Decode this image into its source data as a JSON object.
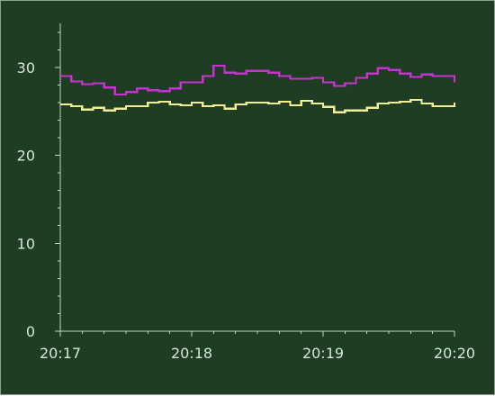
{
  "chart_data": {
    "type": "line",
    "title": "",
    "xlabel": "",
    "ylabel": "",
    "x_tick_labels": [
      "20:17",
      "20:18",
      "20:19",
      "20:20"
    ],
    "y_ticks": [
      0,
      10,
      20,
      30
    ],
    "y_tick_labels": [
      "0",
      "10",
      "20",
      "30"
    ],
    "xlim": [
      "20:17",
      "20:20"
    ],
    "ylim": [
      0,
      35
    ],
    "grid": false,
    "legend": "none",
    "colors": {
      "background": "#1f3d22",
      "axis": "#c7d2c7",
      "text": "#d8e6d8"
    },
    "series": [
      {
        "color": "#c832d2",
        "x": [
          "20:17:00",
          "20:17:05",
          "20:17:10",
          "20:17:15",
          "20:17:20",
          "20:17:25",
          "20:17:30",
          "20:17:35",
          "20:17:40",
          "20:17:45",
          "20:17:50",
          "20:17:55",
          "20:18:00",
          "20:18:05",
          "20:18:10",
          "20:18:15",
          "20:18:20",
          "20:18:25",
          "20:18:30",
          "20:18:35",
          "20:18:40",
          "20:18:45",
          "20:18:50",
          "20:18:55",
          "20:19:00",
          "20:19:05",
          "20:19:10",
          "20:19:15",
          "20:19:20",
          "20:19:25",
          "20:19:30",
          "20:19:35",
          "20:19:40",
          "20:19:45",
          "20:19:50",
          "20:19:55",
          "20:20:00"
        ],
        "values": [
          29.0,
          28.4,
          28.1,
          28.2,
          27.7,
          26.9,
          27.2,
          27.6,
          27.4,
          27.3,
          27.6,
          28.3,
          28.3,
          29.0,
          30.2,
          29.4,
          29.3,
          29.6,
          29.6,
          29.4,
          29.0,
          28.7,
          28.7,
          28.8,
          28.3,
          27.9,
          28.2,
          28.8,
          29.3,
          29.9,
          29.7,
          29.3,
          28.9,
          29.2,
          29.0,
          29.0,
          28.3
        ]
      },
      {
        "color": "#f2ee96",
        "x": [
          "20:17:00",
          "20:17:05",
          "20:17:10",
          "20:17:15",
          "20:17:20",
          "20:17:25",
          "20:17:30",
          "20:17:35",
          "20:17:40",
          "20:17:45",
          "20:17:50",
          "20:17:55",
          "20:18:00",
          "20:18:05",
          "20:18:10",
          "20:18:15",
          "20:18:20",
          "20:18:25",
          "20:18:30",
          "20:18:35",
          "20:18:40",
          "20:18:45",
          "20:18:50",
          "20:18:55",
          "20:19:00",
          "20:19:05",
          "20:19:10",
          "20:19:15",
          "20:19:20",
          "20:19:25",
          "20:19:30",
          "20:19:35",
          "20:19:40",
          "20:19:45",
          "20:19:50",
          "20:19:55",
          "20:20:00"
        ],
        "values": [
          25.8,
          25.6,
          25.2,
          25.4,
          25.1,
          25.3,
          25.6,
          25.6,
          26.0,
          26.1,
          25.8,
          25.7,
          26.0,
          25.6,
          25.7,
          25.3,
          25.8,
          26.0,
          26.0,
          25.9,
          26.1,
          25.7,
          26.2,
          25.9,
          25.5,
          24.9,
          25.1,
          25.1,
          25.4,
          25.9,
          26.0,
          26.1,
          26.3,
          25.9,
          25.6,
          25.6,
          26.0
        ]
      }
    ]
  }
}
